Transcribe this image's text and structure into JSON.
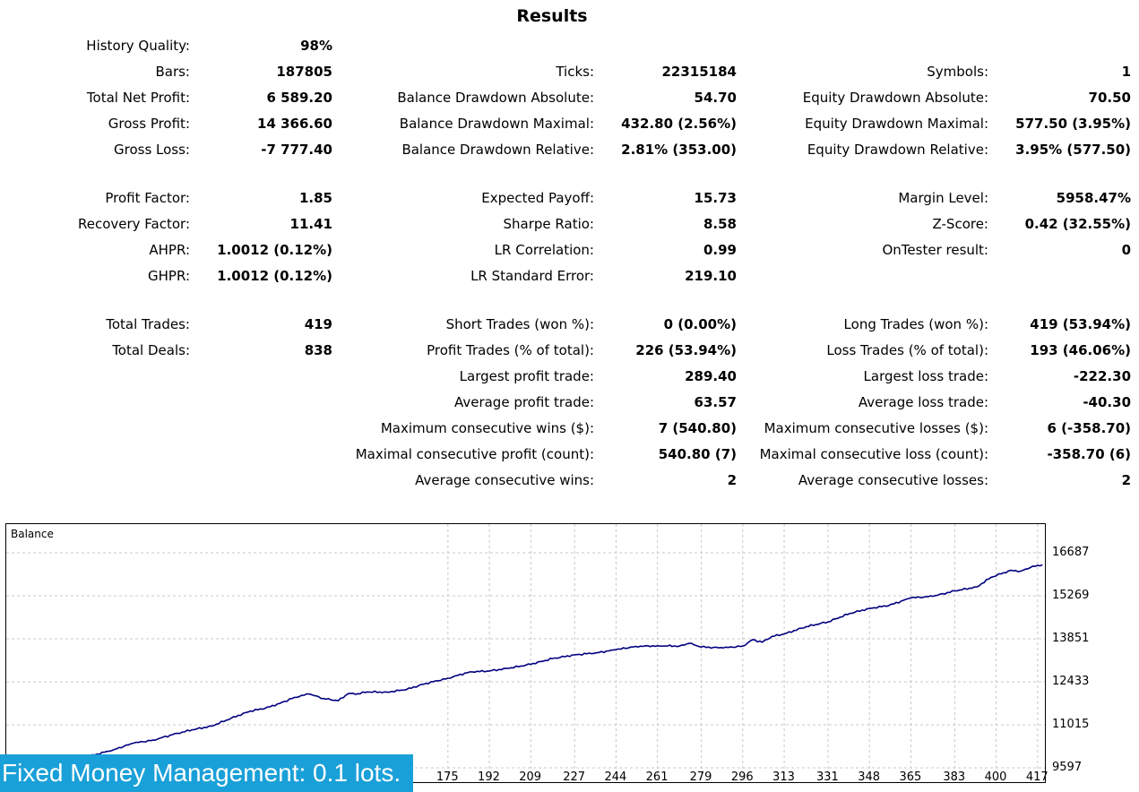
{
  "title": "Results",
  "stats": [
    [
      {
        "label": "History Quality:",
        "value": "98%"
      },
      null,
      null
    ],
    [
      {
        "label": "Bars:",
        "value": "187805"
      },
      {
        "label": "Ticks:",
        "value": "22315184"
      },
      {
        "label": "Symbols:",
        "value": "1"
      }
    ],
    [
      {
        "label": "Total Net Profit:",
        "value": "6 589.20"
      },
      {
        "label": "Balance Drawdown Absolute:",
        "value": "54.70"
      },
      {
        "label": "Equity Drawdown Absolute:",
        "value": "70.50"
      }
    ],
    [
      {
        "label": "Gross Profit:",
        "value": "14 366.60"
      },
      {
        "label": "Balance Drawdown Maximal:",
        "value": "432.80 (2.56%)"
      },
      {
        "label": "Equity Drawdown Maximal:",
        "value": "577.50 (3.95%)"
      }
    ],
    [
      {
        "label": "Gross Loss:",
        "value": "-7 777.40"
      },
      {
        "label": "Balance Drawdown Relative:",
        "value": "2.81% (353.00)"
      },
      {
        "label": "Equity Drawdown Relative:",
        "value": "3.95% (577.50)"
      }
    ],
    null,
    [
      {
        "label": "Profit Factor:",
        "value": "1.85"
      },
      {
        "label": "Expected Payoff:",
        "value": "15.73"
      },
      {
        "label": "Margin Level:",
        "value": "5958.47%"
      }
    ],
    [
      {
        "label": "Recovery Factor:",
        "value": "11.41"
      },
      {
        "label": "Sharpe Ratio:",
        "value": "8.58"
      },
      {
        "label": "Z-Score:",
        "value": "0.42 (32.55%)"
      }
    ],
    [
      {
        "label": "AHPR:",
        "value": "1.0012 (0.12%)"
      },
      {
        "label": "LR Correlation:",
        "value": "0.99"
      },
      {
        "label": "OnTester result:",
        "value": "0"
      }
    ],
    [
      {
        "label": "GHPR:",
        "value": "1.0012 (0.12%)"
      },
      {
        "label": "LR Standard Error:",
        "value": "219.10"
      },
      null
    ],
    null,
    [
      {
        "label": "Total Trades:",
        "value": "419"
      },
      {
        "label": "Short Trades (won %):",
        "value": "0 (0.00%)"
      },
      {
        "label": "Long Trades (won %):",
        "value": "419 (53.94%)"
      }
    ],
    [
      {
        "label": "Total Deals:",
        "value": "838"
      },
      {
        "label": "Profit Trades (% of total):",
        "value": "226 (53.94%)"
      },
      {
        "label": "Loss Trades (% of total):",
        "value": "193 (46.06%)"
      }
    ],
    [
      null,
      {
        "label": "Largest profit trade:",
        "value": "289.40"
      },
      {
        "label": "Largest loss trade:",
        "value": "-222.30"
      }
    ],
    [
      null,
      {
        "label": "Average profit trade:",
        "value": "63.57"
      },
      {
        "label": "Average loss trade:",
        "value": "-40.30"
      }
    ],
    [
      null,
      {
        "label": "Maximum consecutive wins ($):",
        "value": "7 (540.80)"
      },
      {
        "label": "Maximum consecutive losses ($):",
        "value": "6 (-358.70)"
      }
    ],
    [
      null,
      {
        "label": "Maximal consecutive profit (count):",
        "value": "540.80 (7)"
      },
      {
        "label": "Maximal consecutive loss (count):",
        "value": "-358.70 (6)"
      }
    ],
    [
      null,
      {
        "label": "Average consecutive wins:",
        "value": "2"
      },
      {
        "label": "Average consecutive losses:",
        "value": "2"
      }
    ]
  ],
  "chart_data": {
    "type": "line",
    "title": "Balance",
    "xlabel": "",
    "ylabel": "",
    "xlim": [
      0,
      420
    ],
    "ylim": [
      9597,
      17110
    ],
    "y_ticks": [
      9597,
      11015,
      12433,
      13851,
      15269,
      16687
    ],
    "x_ticks": [
      175,
      192,
      209,
      227,
      244,
      261,
      279,
      296,
      313,
      331,
      348,
      365,
      383,
      400,
      417
    ],
    "grid": true,
    "line_color": "#000080",
    "series": [
      {
        "name": "Balance",
        "x": [
          0,
          8,
          15,
          22,
          30,
          38,
          46,
          54,
          62,
          70,
          78,
          86,
          94,
          100,
          106,
          112,
          118,
          124,
          130,
          134,
          138,
          142,
          150,
          158,
          166,
          175,
          184,
          192,
          200,
          209,
          218,
          227,
          236,
          244,
          252,
          261,
          270,
          274,
          279,
          288,
          296,
          300,
          304,
          308,
          313,
          322,
          331,
          340,
          348,
          356,
          365,
          374,
          383,
          392,
          398,
          402,
          406,
          410,
          414,
          417,
          419
        ],
        "y": [
          9597,
          9630,
          9890,
          9950,
          10020,
          10200,
          10410,
          10510,
          10690,
          10850,
          10970,
          11230,
          11470,
          11560,
          11720,
          11920,
          12030,
          11880,
          11810,
          12040,
          12040,
          12100,
          12090,
          12180,
          12380,
          12550,
          12760,
          12790,
          12880,
          13010,
          13200,
          13320,
          13390,
          13490,
          13600,
          13620,
          13610,
          13700,
          13580,
          13550,
          13610,
          13820,
          13740,
          13930,
          14010,
          14250,
          14410,
          14690,
          14850,
          14950,
          15200,
          15250,
          15430,
          15560,
          15880,
          15990,
          16110,
          16080,
          16200,
          16270,
          16290
        ]
      }
    ]
  },
  "banner_text": "Fixed Money Management: 0.1 lots."
}
